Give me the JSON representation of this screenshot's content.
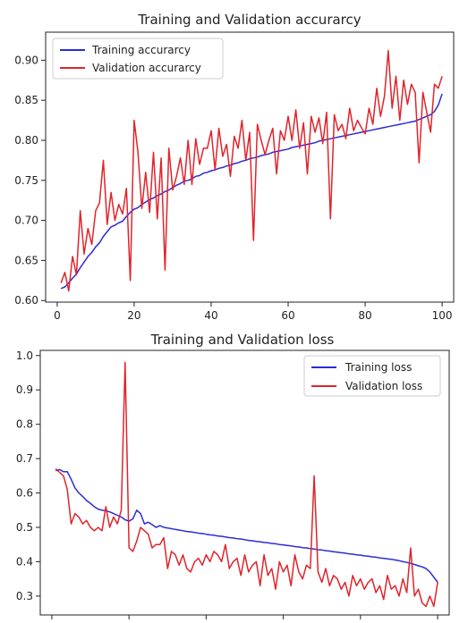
{
  "chart_data": [
    {
      "type": "line",
      "title": "Training and Validation accurarcy",
      "xlabel": "",
      "ylabel": "",
      "xlim": [
        -3,
        103
      ],
      "ylim": [
        0.598,
        0.935
      ],
      "x_ticks": [
        0,
        20,
        40,
        60,
        80,
        100
      ],
      "y_ticks": [
        0.6,
        0.65,
        0.7,
        0.75,
        0.8,
        0.85,
        0.9
      ],
      "x_tick_labels": [
        "0",
        "20",
        "40",
        "60",
        "80",
        "100"
      ],
      "y_tick_labels": [
        "0.60",
        "0.65",
        "0.70",
        "0.75",
        "0.80",
        "0.85",
        "0.90"
      ],
      "grid": false,
      "legend_position": "upper-left",
      "series": [
        {
          "name": "Training accurarcy",
          "color": "#2b2bd6",
          "x": [
            1,
            2,
            3,
            4,
            5,
            6,
            7,
            8,
            9,
            10,
            11,
            12,
            13,
            14,
            15,
            16,
            17,
            18,
            19,
            20,
            21,
            22,
            23,
            24,
            25,
            26,
            27,
            28,
            29,
            30,
            31,
            32,
            33,
            34,
            35,
            36,
            37,
            38,
            39,
            40,
            41,
            42,
            43,
            44,
            45,
            46,
            47,
            48,
            49,
            50,
            51,
            52,
            53,
            54,
            55,
            56,
            57,
            58,
            59,
            60,
            61,
            62,
            63,
            64,
            65,
            66,
            67,
            68,
            69,
            70,
            71,
            72,
            73,
            74,
            75,
            76,
            77,
            78,
            79,
            80,
            81,
            82,
            83,
            84,
            85,
            86,
            87,
            88,
            89,
            90,
            91,
            92,
            93,
            94,
            95,
            96,
            97,
            98,
            99,
            100
          ],
          "values": [
            0.615,
            0.617,
            0.622,
            0.628,
            0.633,
            0.641,
            0.648,
            0.655,
            0.66,
            0.667,
            0.672,
            0.68,
            0.686,
            0.692,
            0.694,
            0.697,
            0.699,
            0.705,
            0.71,
            0.714,
            0.716,
            0.72,
            0.723,
            0.726,
            0.728,
            0.731,
            0.733,
            0.736,
            0.738,
            0.741,
            0.744,
            0.746,
            0.749,
            0.75,
            0.752,
            0.755,
            0.756,
            0.759,
            0.76,
            0.762,
            0.763,
            0.765,
            0.766,
            0.768,
            0.769,
            0.771,
            0.772,
            0.774,
            0.775,
            0.777,
            0.778,
            0.779,
            0.781,
            0.782,
            0.783,
            0.785,
            0.786,
            0.787,
            0.788,
            0.789,
            0.791,
            0.792,
            0.793,
            0.794,
            0.795,
            0.796,
            0.797,
            0.799,
            0.8,
            0.801,
            0.802,
            0.803,
            0.804,
            0.805,
            0.806,
            0.807,
            0.808,
            0.809,
            0.81,
            0.811,
            0.812,
            0.813,
            0.814,
            0.815,
            0.816,
            0.817,
            0.818,
            0.819,
            0.82,
            0.821,
            0.822,
            0.823,
            0.824,
            0.826,
            0.828,
            0.83,
            0.832,
            0.836,
            0.844,
            0.858
          ]
        },
        {
          "name": "Validation accurarcy",
          "color": "#e0242b",
          "x": [
            1,
            2,
            3,
            4,
            5,
            6,
            7,
            8,
            9,
            10,
            11,
            12,
            13,
            14,
            15,
            16,
            17,
            18,
            19,
            20,
            21,
            22,
            23,
            24,
            25,
            26,
            27,
            28,
            29,
            30,
            31,
            32,
            33,
            34,
            35,
            36,
            37,
            38,
            39,
            40,
            41,
            42,
            43,
            44,
            45,
            46,
            47,
            48,
            49,
            50,
            51,
            52,
            53,
            54,
            55,
            56,
            57,
            58,
            59,
            60,
            61,
            62,
            63,
            64,
            65,
            66,
            67,
            68,
            69,
            70,
            71,
            72,
            73,
            74,
            75,
            76,
            77,
            78,
            79,
            80,
            81,
            82,
            83,
            84,
            85,
            86,
            87,
            88,
            89,
            90,
            91,
            92,
            93,
            94,
            95,
            96,
            97,
            98,
            99,
            100
          ],
          "values": [
            0.622,
            0.635,
            0.612,
            0.655,
            0.632,
            0.712,
            0.658,
            0.69,
            0.67,
            0.712,
            0.722,
            0.775,
            0.695,
            0.735,
            0.7,
            0.72,
            0.708,
            0.74,
            0.625,
            0.825,
            0.785,
            0.715,
            0.76,
            0.71,
            0.785,
            0.702,
            0.778,
            0.638,
            0.79,
            0.738,
            0.755,
            0.778,
            0.745,
            0.8,
            0.745,
            0.802,
            0.77,
            0.79,
            0.79,
            0.812,
            0.763,
            0.815,
            0.78,
            0.795,
            0.755,
            0.805,
            0.79,
            0.825,
            0.775,
            0.81,
            0.675,
            0.82,
            0.8,
            0.782,
            0.8,
            0.815,
            0.758,
            0.812,
            0.8,
            0.83,
            0.8,
            0.838,
            0.79,
            0.822,
            0.758,
            0.83,
            0.81,
            0.828,
            0.796,
            0.835,
            0.702,
            0.832,
            0.812,
            0.82,
            0.802,
            0.84,
            0.812,
            0.825,
            0.816,
            0.808,
            0.84,
            0.82,
            0.865,
            0.83,
            0.855,
            0.912,
            0.84,
            0.88,
            0.825,
            0.875,
            0.845,
            0.87,
            0.86,
            0.772,
            0.86,
            0.835,
            0.81,
            0.87,
            0.865,
            0.88
          ]
        }
      ]
    },
    {
      "type": "line",
      "title": "Training and Validation loss",
      "xlabel": "",
      "ylabel": "",
      "xlim": [
        -3,
        103
      ],
      "ylim": [
        0.245,
        1.015
      ],
      "x_ticks": [
        0,
        20,
        40,
        60,
        80,
        100
      ],
      "y_ticks": [
        0.3,
        0.4,
        0.5,
        0.6,
        0.7,
        0.8,
        0.9,
        1.0
      ],
      "x_tick_labels": [],
      "y_tick_labels": [
        "0.3",
        "0.4",
        "0.5",
        "0.6",
        "0.7",
        "0.8",
        "0.9",
        "1.0"
      ],
      "grid": false,
      "legend_position": "upper-right",
      "series": [
        {
          "name": "Training loss",
          "color": "#2b2bd6",
          "x": [
            1,
            2,
            3,
            4,
            5,
            6,
            7,
            8,
            9,
            10,
            11,
            12,
            13,
            14,
            15,
            16,
            17,
            18,
            19,
            20,
            21,
            22,
            23,
            24,
            25,
            26,
            27,
            28,
            29,
            30,
            31,
            32,
            33,
            34,
            35,
            36,
            37,
            38,
            39,
            40,
            41,
            42,
            43,
            44,
            45,
            46,
            47,
            48,
            49,
            50,
            51,
            52,
            53,
            54,
            55,
            56,
            57,
            58,
            59,
            60,
            61,
            62,
            63,
            64,
            65,
            66,
            67,
            68,
            69,
            70,
            71,
            72,
            73,
            74,
            75,
            76,
            77,
            78,
            79,
            80,
            81,
            82,
            83,
            84,
            85,
            86,
            87,
            88,
            89,
            90,
            91,
            92,
            93,
            94,
            95,
            96,
            97,
            98,
            99,
            100
          ],
          "values": [
            0.665,
            0.668,
            0.662,
            0.662,
            0.64,
            0.615,
            0.6,
            0.59,
            0.578,
            0.57,
            0.56,
            0.553,
            0.55,
            0.548,
            0.545,
            0.54,
            0.535,
            0.53,
            0.522,
            0.518,
            0.525,
            0.55,
            0.54,
            0.51,
            0.515,
            0.508,
            0.5,
            0.505,
            0.5,
            0.498,
            0.496,
            0.494,
            0.492,
            0.49,
            0.488,
            0.487,
            0.485,
            0.483,
            0.482,
            0.48,
            0.478,
            0.477,
            0.475,
            0.474,
            0.472,
            0.47,
            0.469,
            0.467,
            0.466,
            0.464,
            0.462,
            0.461,
            0.459,
            0.458,
            0.456,
            0.455,
            0.453,
            0.452,
            0.45,
            0.449,
            0.447,
            0.446,
            0.444,
            0.443,
            0.441,
            0.44,
            0.438,
            0.437,
            0.435,
            0.434,
            0.432,
            0.431,
            0.429,
            0.428,
            0.426,
            0.425,
            0.423,
            0.422,
            0.42,
            0.419,
            0.417,
            0.416,
            0.414,
            0.413,
            0.411,
            0.41,
            0.408,
            0.407,
            0.405,
            0.403,
            0.4,
            0.398,
            0.395,
            0.392,
            0.388,
            0.385,
            0.38,
            0.37,
            0.355,
            0.34
          ]
        },
        {
          "name": "Validation loss",
          "color": "#e0242b",
          "x": [
            1,
            2,
            3,
            4,
            5,
            6,
            7,
            8,
            9,
            10,
            11,
            12,
            13,
            14,
            15,
            16,
            17,
            18,
            19,
            20,
            21,
            22,
            23,
            24,
            25,
            26,
            27,
            28,
            29,
            30,
            31,
            32,
            33,
            34,
            35,
            36,
            37,
            38,
            39,
            40,
            41,
            42,
            43,
            44,
            45,
            46,
            47,
            48,
            49,
            50,
            51,
            52,
            53,
            54,
            55,
            56,
            57,
            58,
            59,
            60,
            61,
            62,
            63,
            64,
            65,
            66,
            67,
            68,
            69,
            70,
            71,
            72,
            73,
            74,
            75,
            76,
            77,
            78,
            79,
            80,
            81,
            82,
            83,
            84,
            85,
            86,
            87,
            88,
            89,
            90,
            91,
            92,
            93,
            94,
            95,
            96,
            97,
            98,
            99,
            100
          ],
          "values": [
            0.67,
            0.66,
            0.65,
            0.61,
            0.51,
            0.54,
            0.53,
            0.51,
            0.52,
            0.5,
            0.49,
            0.5,
            0.49,
            0.56,
            0.5,
            0.53,
            0.51,
            0.55,
            0.98,
            0.44,
            0.43,
            0.46,
            0.5,
            0.49,
            0.48,
            0.44,
            0.45,
            0.45,
            0.47,
            0.38,
            0.43,
            0.42,
            0.39,
            0.42,
            0.38,
            0.37,
            0.4,
            0.41,
            0.39,
            0.42,
            0.4,
            0.43,
            0.42,
            0.4,
            0.45,
            0.38,
            0.4,
            0.41,
            0.36,
            0.42,
            0.37,
            0.39,
            0.4,
            0.33,
            0.42,
            0.36,
            0.38,
            0.32,
            0.4,
            0.37,
            0.39,
            0.33,
            0.42,
            0.37,
            0.35,
            0.39,
            0.38,
            0.65,
            0.37,
            0.34,
            0.38,
            0.33,
            0.36,
            0.35,
            0.32,
            0.34,
            0.3,
            0.36,
            0.33,
            0.35,
            0.32,
            0.34,
            0.35,
            0.31,
            0.33,
            0.29,
            0.36,
            0.32,
            0.33,
            0.3,
            0.35,
            0.31,
            0.44,
            0.3,
            0.32,
            0.28,
            0.27,
            0.3,
            0.27,
            0.34
          ]
        }
      ]
    }
  ]
}
